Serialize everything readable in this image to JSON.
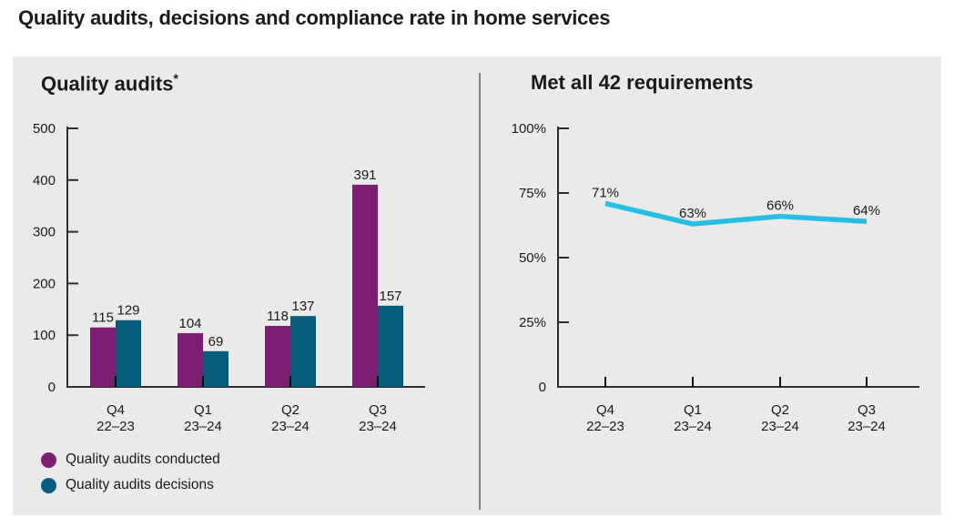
{
  "page_title": "Quality audits, decisions and compliance rate in home services",
  "text_color": "#1a1a1a",
  "axis_color": "#2e2e2e",
  "panel": {
    "background": "#eaeaea",
    "divider_color": "#808080"
  },
  "legend": {
    "items": [
      {
        "label": "Quality audits conducted",
        "color": "#7B1E74"
      },
      {
        "label": "Quality audits decisions",
        "color": "#065D7D"
      }
    ]
  },
  "chart_data": [
    {
      "type": "bar",
      "title": "Quality audits",
      "title_note": "*",
      "categories": [
        [
          "Q4",
          "22–23"
        ],
        [
          "Q1",
          "23–24"
        ],
        [
          "Q2",
          "23–24"
        ],
        [
          "Q3",
          "23–24"
        ]
      ],
      "series": [
        {
          "name": "Quality audits conducted",
          "color": "#7B1E74",
          "values": [
            115,
            104,
            118,
            391
          ]
        },
        {
          "name": "Quality audits decisions",
          "color": "#065D7D",
          "values": [
            129,
            69,
            137,
            157
          ]
        }
      ],
      "ylim": [
        0,
        500
      ],
      "yticks": [
        {
          "label": "0",
          "value": 0
        },
        {
          "label": "100",
          "value": 100
        },
        {
          "label": "200",
          "value": 200
        },
        {
          "label": "300",
          "value": 300
        },
        {
          "label": "400",
          "value": 400
        },
        {
          "label": "500",
          "value": 500
        }
      ],
      "grid": false,
      "legend_position": "bottom-left"
    },
    {
      "type": "line",
      "title": "Met all 42 requirements",
      "categories": [
        [
          "Q4",
          "22–23"
        ],
        [
          "Q1",
          "23–24"
        ],
        [
          "Q2",
          "23–24"
        ],
        [
          "Q3",
          "23–24"
        ]
      ],
      "values": [
        71,
        63,
        66,
        64
      ],
      "point_labels": [
        "71%",
        "63%",
        "66%",
        "64%"
      ],
      "ylim": [
        0,
        100
      ],
      "yticks": [
        {
          "label": "0",
          "value": 0
        },
        {
          "label": "25%",
          "value": 25
        },
        {
          "label": "50%",
          "value": 50
        },
        {
          "label": "75%",
          "value": 75
        },
        {
          "label": "100%",
          "value": 100
        }
      ],
      "line_color": "#27BEE3",
      "grid": false
    }
  ]
}
